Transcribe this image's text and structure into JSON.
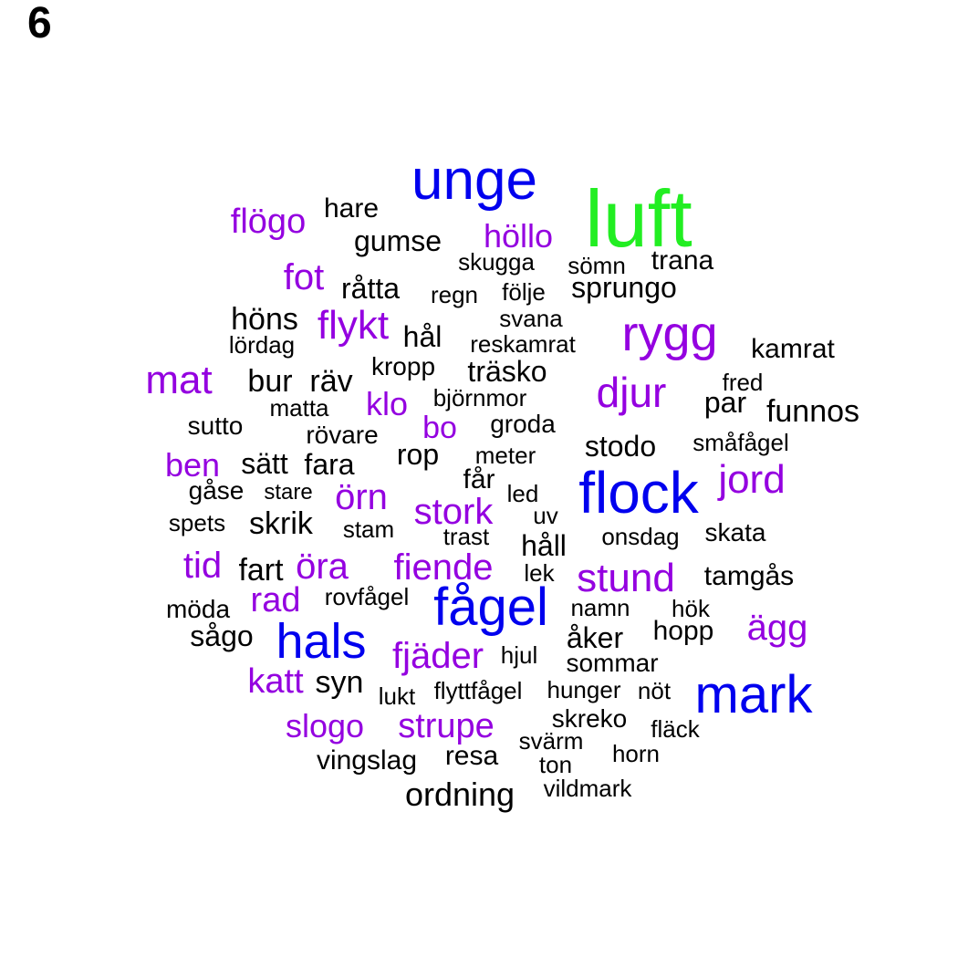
{
  "panel_label": "6",
  "palette": {
    "green": "#22ee22",
    "blue": "#0000ee",
    "purple": "#9400e0",
    "black": "#000000"
  },
  "words": [
    {
      "text": "luft",
      "color": "green"
    },
    {
      "text": "unge",
      "color": "blue"
    },
    {
      "text": "flock",
      "color": "blue"
    },
    {
      "text": "fågel",
      "color": "blue"
    },
    {
      "text": "hals",
      "color": "blue"
    },
    {
      "text": "mark",
      "color": "blue"
    },
    {
      "text": "rygg",
      "color": "purple"
    },
    {
      "text": "djur",
      "color": "purple"
    },
    {
      "text": "mat",
      "color": "purple"
    },
    {
      "text": "jord",
      "color": "purple"
    },
    {
      "text": "stund",
      "color": "purple"
    },
    {
      "text": "ägg",
      "color": "purple"
    },
    {
      "text": "flögo",
      "color": "purple"
    },
    {
      "text": "höllo",
      "color": "purple"
    },
    {
      "text": "fot",
      "color": "purple"
    },
    {
      "text": "flykt",
      "color": "purple"
    },
    {
      "text": "klo",
      "color": "purple"
    },
    {
      "text": "bo",
      "color": "purple"
    },
    {
      "text": "ben",
      "color": "purple"
    },
    {
      "text": "örn",
      "color": "purple"
    },
    {
      "text": "stork",
      "color": "purple"
    },
    {
      "text": "tid",
      "color": "purple"
    },
    {
      "text": "öra",
      "color": "purple"
    },
    {
      "text": "fiende",
      "color": "purple"
    },
    {
      "text": "rad",
      "color": "purple"
    },
    {
      "text": "fjäder",
      "color": "purple"
    },
    {
      "text": "katt",
      "color": "purple"
    },
    {
      "text": "slogo",
      "color": "purple"
    },
    {
      "text": "strupe",
      "color": "purple"
    },
    {
      "text": "hare",
      "color": "black"
    },
    {
      "text": "gumse",
      "color": "black"
    },
    {
      "text": "skugga",
      "color": "black"
    },
    {
      "text": "sömn",
      "color": "black"
    },
    {
      "text": "trana",
      "color": "black"
    },
    {
      "text": "råtta",
      "color": "black"
    },
    {
      "text": "regn",
      "color": "black"
    },
    {
      "text": "följe",
      "color": "black"
    },
    {
      "text": "sprungo",
      "color": "black"
    },
    {
      "text": "höns",
      "color": "black"
    },
    {
      "text": "svana",
      "color": "black"
    },
    {
      "text": "lördag",
      "color": "black"
    },
    {
      "text": "hål",
      "color": "black"
    },
    {
      "text": "reskamrat",
      "color": "black"
    },
    {
      "text": "kamrat",
      "color": "black"
    },
    {
      "text": "kropp",
      "color": "black"
    },
    {
      "text": "träsko",
      "color": "black"
    },
    {
      "text": "bur",
      "color": "black"
    },
    {
      "text": "räv",
      "color": "black"
    },
    {
      "text": "fred",
      "color": "black"
    },
    {
      "text": "matta",
      "color": "black"
    },
    {
      "text": "björnmor",
      "color": "black"
    },
    {
      "text": "par",
      "color": "black"
    },
    {
      "text": "funnos",
      "color": "black"
    },
    {
      "text": "sutto",
      "color": "black"
    },
    {
      "text": "rövare",
      "color": "black"
    },
    {
      "text": "groda",
      "color": "black"
    },
    {
      "text": "stodo",
      "color": "black"
    },
    {
      "text": "småfågel",
      "color": "black"
    },
    {
      "text": "rop",
      "color": "black"
    },
    {
      "text": "meter",
      "color": "black"
    },
    {
      "text": "sätt",
      "color": "black"
    },
    {
      "text": "fara",
      "color": "black"
    },
    {
      "text": "får",
      "color": "black"
    },
    {
      "text": "gåse",
      "color": "black"
    },
    {
      "text": "stare",
      "color": "black"
    },
    {
      "text": "led",
      "color": "black"
    },
    {
      "text": "uv",
      "color": "black"
    },
    {
      "text": "spets",
      "color": "black"
    },
    {
      "text": "skrik",
      "color": "black"
    },
    {
      "text": "stam",
      "color": "black"
    },
    {
      "text": "trast",
      "color": "black"
    },
    {
      "text": "håll",
      "color": "black"
    },
    {
      "text": "onsdag",
      "color": "black"
    },
    {
      "text": "skata",
      "color": "black"
    },
    {
      "text": "fart",
      "color": "black"
    },
    {
      "text": "lek",
      "color": "black"
    },
    {
      "text": "tamgås",
      "color": "black"
    },
    {
      "text": "möda",
      "color": "black"
    },
    {
      "text": "rovfågel",
      "color": "black"
    },
    {
      "text": "namn",
      "color": "black"
    },
    {
      "text": "hök",
      "color": "black"
    },
    {
      "text": "sågo",
      "color": "black"
    },
    {
      "text": "åker",
      "color": "black"
    },
    {
      "text": "hopp",
      "color": "black"
    },
    {
      "text": "hjul",
      "color": "black"
    },
    {
      "text": "sommar",
      "color": "black"
    },
    {
      "text": "syn",
      "color": "black"
    },
    {
      "text": "lukt",
      "color": "black"
    },
    {
      "text": "flyttfågel",
      "color": "black"
    },
    {
      "text": "hunger",
      "color": "black"
    },
    {
      "text": "nöt",
      "color": "black"
    },
    {
      "text": "skreko",
      "color": "black"
    },
    {
      "text": "fläck",
      "color": "black"
    },
    {
      "text": "svärm",
      "color": "black"
    },
    {
      "text": "horn",
      "color": "black"
    },
    {
      "text": "vingslag",
      "color": "black"
    },
    {
      "text": "resa",
      "color": "black"
    },
    {
      "text": "ton",
      "color": "black"
    },
    {
      "text": "vildmark",
      "color": "black"
    },
    {
      "text": "ordning",
      "color": "black"
    }
  ]
}
